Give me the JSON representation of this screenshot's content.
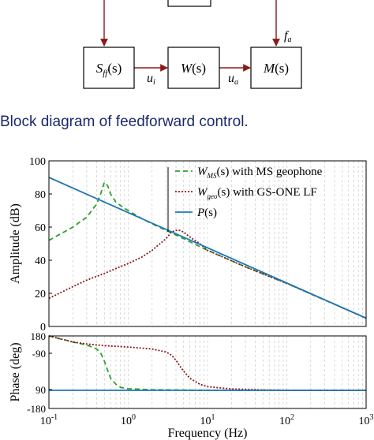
{
  "block_diagram": {
    "blocks": [
      {
        "id": "sff",
        "label_main": "S",
        "label_sub": "ff",
        "label_tail": "(s)"
      },
      {
        "id": "w",
        "label_main": "W",
        "label_sub": "",
        "label_tail": "(s)"
      },
      {
        "id": "m",
        "label_main": "M",
        "label_sub": "",
        "label_tail": "(s)"
      }
    ],
    "signals": {
      "ui_main": "u",
      "ui_sub": "i",
      "ua_main": "u",
      "ua_sub": "a",
      "fa_main": "f",
      "fa_sub": "a"
    },
    "arrow_color": "#8b1a1a"
  },
  "caption": "Block diagram of feedforward control.",
  "chart_data": [
    {
      "type": "line",
      "name": "amplitude-panel",
      "ylabel": "Amplitude (dB)",
      "x_scale": "log",
      "xlim": [
        0.1,
        1000
      ],
      "ylim": [
        0,
        100
      ],
      "yticks": [
        "0",
        "20",
        "40",
        "60",
        "80",
        "100"
      ],
      "grid": true,
      "legend": "top-right",
      "legend_entries": [
        {
          "main": "W",
          "sub": "MS",
          "rest": "(s) with MS geophone",
          "color": "#2ca02c",
          "dash": "6,4"
        },
        {
          "main": "W",
          "sub": "geo",
          "rest": "(s) with GS-ONE LF",
          "color": "#8b1a1a",
          "dash": "2,2"
        },
        {
          "main": "P",
          "sub": "",
          "rest": "(s)",
          "color": "#1f77b4",
          "dash": ""
        }
      ],
      "series": [
        {
          "name": "W_MS(s) with MS geophone",
          "color": "#2ca02c",
          "dash": "6,4",
          "x": [
            0.1,
            0.2,
            0.3,
            0.4,
            0.45,
            0.5,
            0.55,
            0.6,
            0.7,
            0.8,
            1,
            1.5,
            2,
            3,
            5,
            10,
            30,
            100,
            300,
            1000
          ],
          "y": [
            52,
            60,
            66,
            74,
            80,
            87,
            85,
            80,
            75,
            73,
            70,
            65,
            62,
            58,
            53,
            46,
            36,
            26,
            16,
            5
          ]
        },
        {
          "name": "W_geo(s) with GS-ONE LF",
          "color": "#8b1a1a",
          "dash": "2,2",
          "x": [
            0.1,
            0.2,
            0.3,
            0.5,
            0.7,
            1,
            1.5,
            2,
            3,
            3.5,
            4,
            4.5,
            5,
            6,
            8,
            10,
            30,
            100,
            300,
            1000
          ],
          "y": [
            17,
            24,
            28,
            32,
            35,
            38,
            42,
            46,
            53,
            57,
            58,
            58,
            57,
            54,
            50,
            46,
            36,
            26,
            16,
            5
          ]
        },
        {
          "name": "P(s)",
          "color": "#1f77b4",
          "dash": "",
          "x": [
            0.1,
            1000
          ],
          "y": [
            90,
            5
          ]
        }
      ]
    },
    {
      "type": "line",
      "name": "phase-panel",
      "xlabel": "Frequency (Hz)",
      "ylabel": "Phase (deg)",
      "x_scale": "log",
      "xlim": [
        0.1,
        1000
      ],
      "ylim": [
        -180,
        180
      ],
      "yticks": [
        "180",
        "-90",
        "90",
        "-180"
      ],
      "xticks": [
        {
          "base": "10",
          "exp": "-1"
        },
        {
          "base": "10",
          "exp": "0"
        },
        {
          "base": "10",
          "exp": "1"
        },
        {
          "base": "10",
          "exp": "2"
        },
        {
          "base": "10",
          "exp": "3"
        }
      ],
      "grid": true,
      "series": [
        {
          "name": "W_MS(s) with MS geophone",
          "color": "#2ca02c",
          "dash": "6,4",
          "x": [
            0.1,
            0.2,
            0.3,
            0.4,
            0.45,
            0.5,
            0.55,
            0.6,
            0.7,
            0.8,
            1,
            2,
            5,
            10,
            100,
            1000
          ],
          "y": [
            180,
            150,
            135,
            115,
            95,
            55,
            10,
            -30,
            -60,
            -75,
            -82,
            -87,
            -89,
            -90,
            -90,
            -90
          ]
        },
        {
          "name": "W_geo(s) with GS-ONE LF",
          "color": "#8b1a1a",
          "dash": "2,2",
          "x": [
            0.1,
            0.2,
            0.3,
            0.5,
            1,
            2,
            3,
            3.5,
            4,
            4.5,
            5,
            6,
            8,
            10,
            20,
            50,
            100,
            1000
          ],
          "y": [
            180,
            150,
            140,
            132,
            125,
            115,
            100,
            85,
            60,
            30,
            5,
            -30,
            -60,
            -72,
            -83,
            -88,
            -90,
            -90
          ]
        },
        {
          "name": "P(s)",
          "color": "#1f77b4",
          "dash": "",
          "x": [
            0.1,
            1000
          ],
          "y": [
            -90,
            -90
          ]
        }
      ]
    }
  ]
}
